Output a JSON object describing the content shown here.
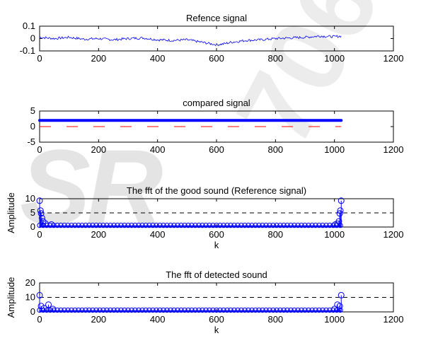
{
  "watermark": {
    "left_text": "SR",
    "right_text": "7064"
  },
  "chart_data": [
    {
      "type": "line",
      "title": "Refence signal",
      "xlabel": "",
      "ylabel": "",
      "xlim": [
        0,
        1200
      ],
      "ylim": [
        -0.1,
        0.1
      ],
      "xticks": [
        0,
        200,
        400,
        600,
        800,
        1000,
        1200
      ],
      "yticks": [
        0.1,
        0,
        -0.1
      ],
      "series": [
        {
          "color": "#0000ff",
          "x": [
            0,
            50,
            100,
            150,
            200,
            250,
            300,
            350,
            400,
            450,
            500,
            550,
            600,
            620,
            650,
            700,
            750,
            800,
            850,
            900,
            950,
            1000,
            1023
          ],
          "y": [
            0.01,
            0.0,
            0.01,
            -0.005,
            0.0,
            -0.01,
            0.0,
            0.005,
            -0.01,
            -0.015,
            -0.01,
            -0.03,
            -0.05,
            -0.045,
            -0.03,
            -0.015,
            -0.01,
            0.0,
            0.005,
            0.01,
            0.02,
            0.015,
            0.02
          ]
        }
      ]
    },
    {
      "type": "line",
      "title": "compared signal",
      "xlabel": "",
      "ylabel": "",
      "xlim": [
        0,
        1200
      ],
      "ylim": [
        -5,
        5
      ],
      "xticks": [
        0,
        200,
        400,
        600,
        800,
        1000,
        1200
      ],
      "yticks": [
        5,
        0,
        -5
      ],
      "series": [
        {
          "color": "#0000ff",
          "style": "thick",
          "x": [
            0,
            1023
          ],
          "y": [
            2,
            2
          ]
        },
        {
          "color": "#ff0000",
          "style": "dashed",
          "x": [
            0,
            1023
          ],
          "y": [
            0,
            0
          ]
        }
      ]
    },
    {
      "type": "scatter",
      "title": "The fft of the good sound (Reference signal)",
      "xlabel": "k",
      "ylabel": "Amplitude",
      "xlim": [
        0,
        1200
      ],
      "ylim": [
        0,
        10
      ],
      "xticks": [
        0,
        200,
        400,
        600,
        800,
        1000,
        1200
      ],
      "yticks": [
        10,
        5,
        0
      ],
      "threshold": 5,
      "series": [
        {
          "color": "#0000ff",
          "marker": "stem-circle",
          "x": [
            0,
            3,
            5,
            8,
            12,
            20,
            40,
            1003,
            1011,
            1015,
            1018,
            1020,
            1023
          ],
          "y": [
            9.3,
            5.8,
            4.8,
            3.2,
            2.0,
            1.2,
            0.9,
            0.9,
            1.2,
            2.0,
            4.8,
            5.8,
            9.3
          ]
        }
      ]
    },
    {
      "type": "scatter",
      "title": "The fft of detected sound",
      "xlabel": "k",
      "ylabel": "Amplitude",
      "xlim": [
        0,
        1200
      ],
      "ylim": [
        0,
        20
      ],
      "xticks": [
        0,
        200,
        400,
        600,
        800,
        1000,
        1200
      ],
      "yticks": [
        20,
        10,
        0
      ],
      "threshold": 10,
      "series": [
        {
          "color": "#0000ff",
          "marker": "stem-circle",
          "x": [
            0,
            5,
            15,
            30,
            45,
            1000,
            1010,
            1018,
            1023
          ],
          "y": [
            11.5,
            4.0,
            2.5,
            5.0,
            2.0,
            2.0,
            5.0,
            4.0,
            11.5
          ]
        }
      ]
    }
  ]
}
